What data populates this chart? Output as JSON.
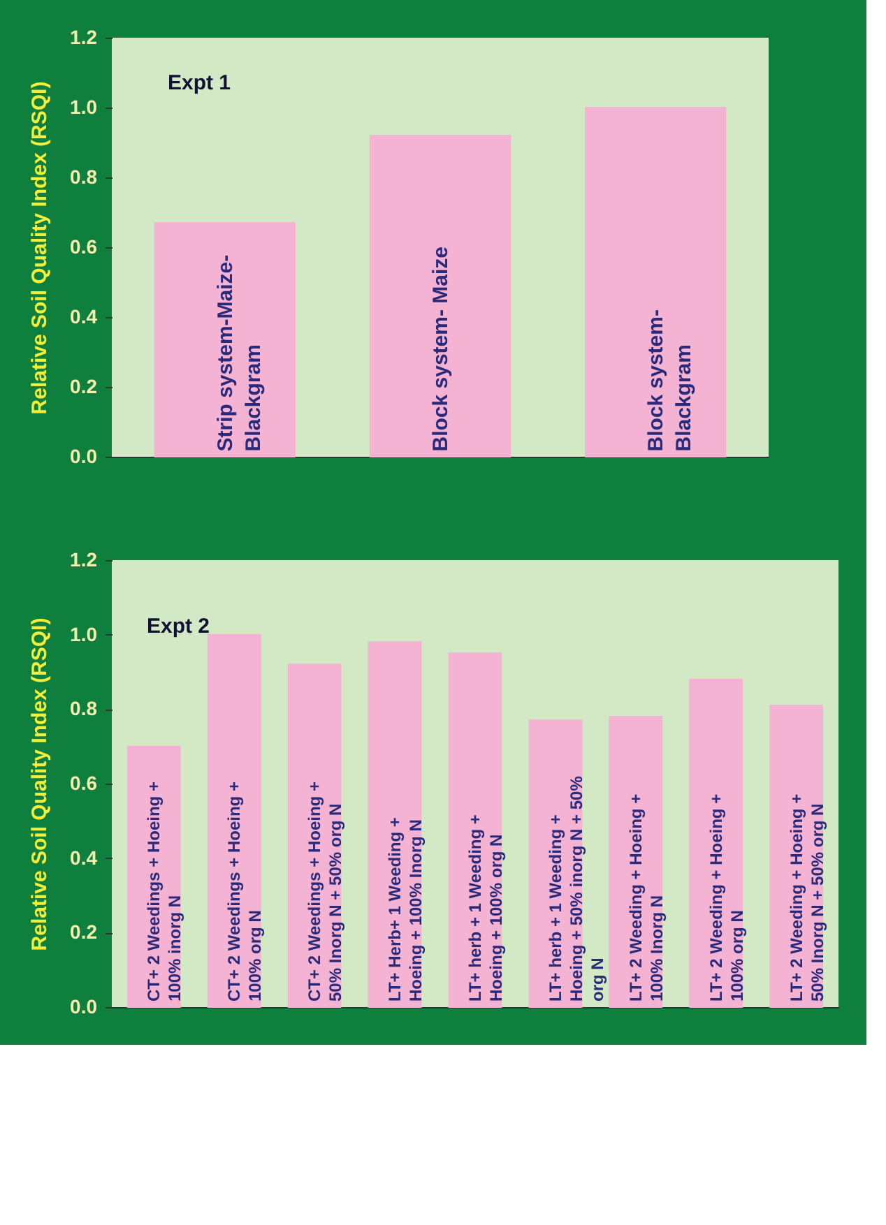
{
  "chart_data": [
    {
      "type": "bar",
      "ylabel": "Relative Soil Quality Index (RSQI)",
      "annotations": [
        "Expt 1"
      ],
      "categories": [
        "Strip system-Maize-Blackgram",
        "Block system- Maize",
        "Block system-Blackgram"
      ],
      "values": [
        0.67,
        0.92,
        1.0
      ],
      "color": "#f4b3d2",
      "ylim": [
        0,
        1.2
      ],
      "yticks": [
        {
          "value": 0,
          "label": "0.0"
        },
        0.2,
        0.4,
        0.6,
        0.8,
        {
          "value": 1,
          "label": "1.0"
        },
        1.2
      ],
      "grid": false
    },
    {
      "type": "bar",
      "ylabel": "Relative Soil Quality Index (RSQI)",
      "annotations": [
        "Expt 2"
      ],
      "categories": [
        "CT+ 2 Weedings + Hoeing + 100% inorg N",
        "CT+ 2 Weedings + Hoeing + 100% org N",
        "CT+ 2 Weedings + Hoeing + 50% Inorg N + 50% org N",
        "LT+ Herb+ 1 Weeding + Hoeing + 100% Inorg N",
        "LT+ herb + 1 Weeding + Hoeing + 100% org N",
        "LT+ herb + 1 Weeding + Hoeing + 50% inorg N + 50% org N",
        "LT+ 2 Weeding + Hoeing + 100% Inorg N",
        "LT+ 2 Weeding + Hoeing + 100% org N",
        "LT+ 2 Weeding + Hoeing + 50% Inorg N + 50% org N"
      ],
      "values": [
        0.7,
        1.0,
        0.92,
        0.98,
        0.95,
        0.77,
        0.78,
        0.88,
        0.81
      ],
      "color": "#f4b3d2",
      "ylim": [
        0,
        1.2
      ],
      "yticks": [
        {
          "value": 0,
          "label": "0.0"
        },
        0.2,
        0.4,
        0.6,
        0.8,
        {
          "value": 1,
          "label": "1.0"
        },
        1.2
      ],
      "grid": false
    }
  ]
}
